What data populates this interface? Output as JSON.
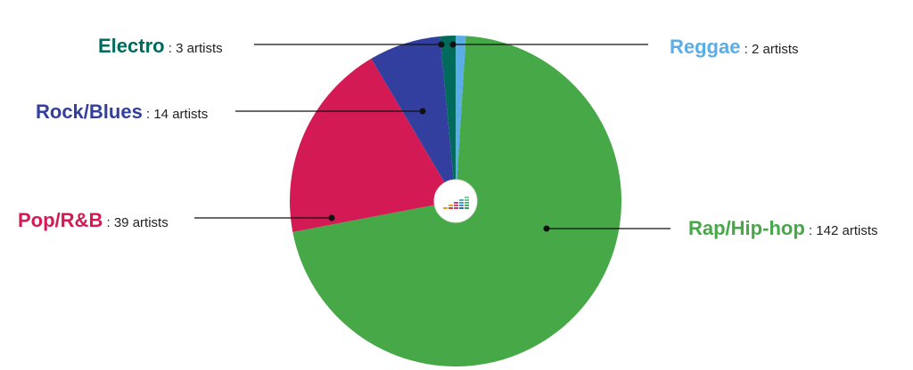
{
  "chart_data": {
    "type": "pie",
    "title": "",
    "unit_text": "artists",
    "separator": ":",
    "slices": [
      {
        "label": "Rap/Hip-hop",
        "value": 142,
        "count_text": "142 artists",
        "color": "#46a846"
      },
      {
        "label": "Pop/R&B",
        "value": 39,
        "count_text": "39 artists",
        "color": "#d41a55"
      },
      {
        "label": "Rock/Blues",
        "value": 14,
        "count_text": "14 artists",
        "color": "#333f9e"
      },
      {
        "label": "Electro",
        "value": 3,
        "count_text": "3 artists",
        "color": "#006b5c"
      },
      {
        "label": "Reggae",
        "value": 2,
        "count_text": "2 artists",
        "color": "#5aade6"
      }
    ],
    "start_angle": "12 o'clock",
    "direction": "clockwise",
    "legend": "leader-line callouts"
  },
  "center_icon": {
    "name": "deezer-logo-icon",
    "background": "#ffffff"
  }
}
